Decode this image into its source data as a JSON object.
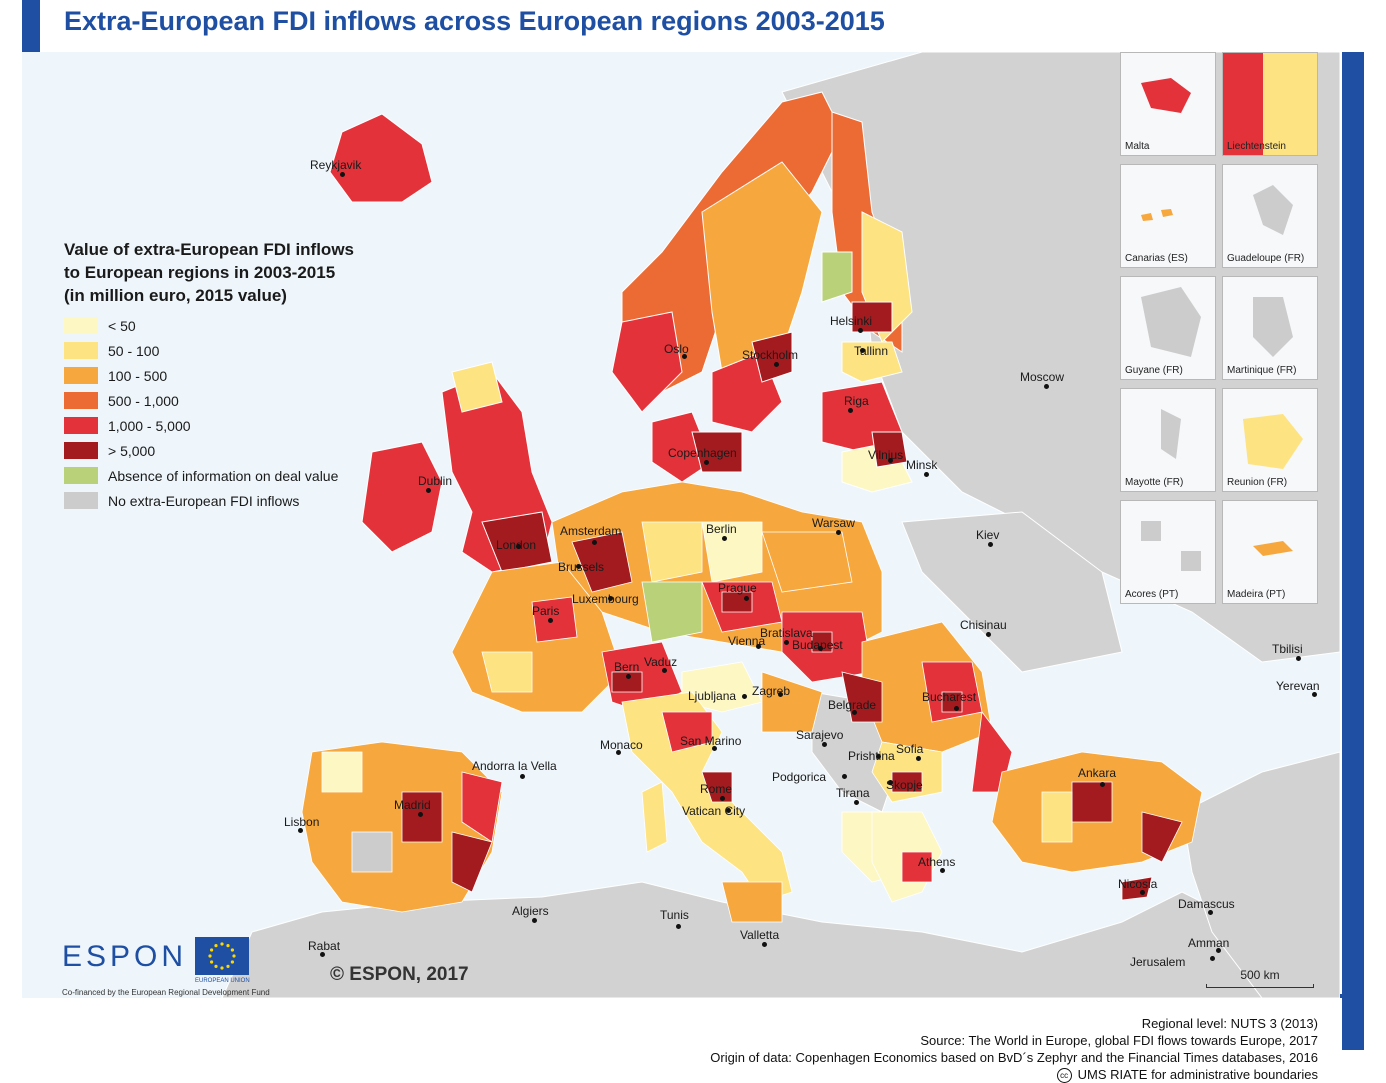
{
  "title": "Extra-European FDI inflows across European regions 2003-2015",
  "legend": {
    "title_lines": [
      "Value of extra-European FDI inflows",
      "to European regions in 2003-2015",
      "(in million euro, 2015 value)"
    ],
    "items": [
      {
        "label": "< 50",
        "color": "#fdf7c3"
      },
      {
        "label": "50 - 100",
        "color": "#fde382"
      },
      {
        "label": "100 - 500",
        "color": "#f6a83e"
      },
      {
        "label": "500 - 1,000",
        "color": "#ec6a33"
      },
      {
        "label": "1,000 - 5,000",
        "color": "#e3323a"
      },
      {
        "label": "> 5,000",
        "color": "#a41b1f"
      },
      {
        "label": "Absence of information on deal value",
        "color": "#b9d27a"
      },
      {
        "label": "No extra-European FDI inflows",
        "color": "#cccccc"
      }
    ]
  },
  "cities": [
    {
      "name": "Reykjavik"
    },
    {
      "name": "Oslo"
    },
    {
      "name": "Stockholm"
    },
    {
      "name": "Helsinki"
    },
    {
      "name": "Tallinn"
    },
    {
      "name": "Riga"
    },
    {
      "name": "Copenhagen"
    },
    {
      "name": "Vilnius"
    },
    {
      "name": "Minsk"
    },
    {
      "name": "Moscow"
    },
    {
      "name": "Dublin"
    },
    {
      "name": "London"
    },
    {
      "name": "Amsterdam"
    },
    {
      "name": "Berlin"
    },
    {
      "name": "Warsaw"
    },
    {
      "name": "Brussels"
    },
    {
      "name": "Luxembourg"
    },
    {
      "name": "Prague"
    },
    {
      "name": "Kiev"
    },
    {
      "name": "Paris"
    },
    {
      "name": "Bratislava"
    },
    {
      "name": "Vienna"
    },
    {
      "name": "Budapest"
    },
    {
      "name": "Chisinau"
    },
    {
      "name": "Bern"
    },
    {
      "name": "Vaduz"
    },
    {
      "name": "Ljubljana"
    },
    {
      "name": "Zagreb"
    },
    {
      "name": "Belgrade"
    },
    {
      "name": "Bucharest"
    },
    {
      "name": "Tbilisi"
    },
    {
      "name": "Yerevan"
    },
    {
      "name": "Monaco"
    },
    {
      "name": "San Marino"
    },
    {
      "name": "Sarajevo"
    },
    {
      "name": "Prishtina"
    },
    {
      "name": "Sofia"
    },
    {
      "name": "Andorra la Vella"
    },
    {
      "name": "Podgorica"
    },
    {
      "name": "Skopje"
    },
    {
      "name": "Ankara"
    },
    {
      "name": "Rome"
    },
    {
      "name": "Tirana"
    },
    {
      "name": "Madrid"
    },
    {
      "name": "Vatican City"
    },
    {
      "name": "Lisbon"
    },
    {
      "name": "Athens"
    },
    {
      "name": "Nicosia"
    },
    {
      "name": "Damascus"
    },
    {
      "name": "Algiers"
    },
    {
      "name": "Tunis"
    },
    {
      "name": "Rabat"
    },
    {
      "name": "Valletta"
    },
    {
      "name": "Amman"
    },
    {
      "name": "Jerusalem"
    }
  ],
  "insets": [
    {
      "label": "Malta"
    },
    {
      "label": "Liechtenstein"
    },
    {
      "label": "Canarias (ES)"
    },
    {
      "label": "Guadeloupe (FR)"
    },
    {
      "label": "Guyane (FR)"
    },
    {
      "label": "Martinique (FR)"
    },
    {
      "label": "Mayotte (FR)"
    },
    {
      "label": "Reunion (FR)"
    },
    {
      "label": "Acores (PT)"
    },
    {
      "label": "Madeira (PT)"
    }
  ],
  "copyright": "© ESPON, 2017",
  "logo": {
    "espon": "ESPON",
    "cofinanced": "Co-financed by the European Regional Development Fund",
    "eu": "EUROPEAN UNION"
  },
  "scale_label": "500 km",
  "footer": {
    "line1": "Regional level: NUTS 3 (2013)",
    "line2": "Source: The World in Europe, global FDI flows towards Europe, 2017",
    "line3": "Origin of data: Copenhagen Economics based on BvD´s Zephyr and the Financial Times databases, 2016",
    "line4": "UMS RIATE for administrative boundaries",
    "cc": "cc"
  },
  "colors": {
    "brand_blue": "#1e4fa3",
    "sea": "#eef6fb",
    "non_eu_land": "#d2d2d2"
  }
}
